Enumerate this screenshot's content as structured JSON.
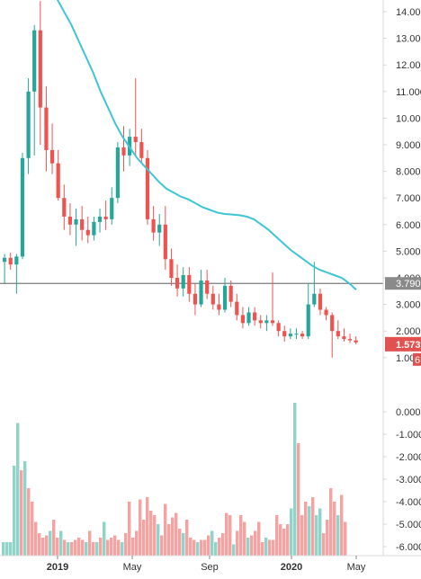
{
  "colors": {
    "up": "#26a69a",
    "down": "#ef5350",
    "up_volume": "#8fd3c9",
    "down_volume": "#f3a3a1",
    "moving_average": "#3ec6d4",
    "horizontal_line": "#7b7b7b",
    "price_label_bg": "#e0514f",
    "axis_text": "#333333",
    "axis_border": "#d9d9d9"
  },
  "chart_data": [
    {
      "type": "candlestick",
      "title": "",
      "y_ticks": [
        "14.000",
        "13.000",
        "12.000",
        "11.000",
        "10.000",
        "9.000",
        "8.000",
        "7.000",
        "6.000",
        "5.000",
        "4.000",
        "3.000",
        "2.000",
        "1.000"
      ],
      "ylim": [
        0.6,
        14.45
      ],
      "x_ticks": [
        "2019",
        "May",
        "Sep",
        "2020",
        "May"
      ],
      "horizontal_line": {
        "value": 3.79,
        "label": "3.790"
      },
      "last_price": {
        "value": 1.573,
        "label": "1.573"
      },
      "secondary_label": "6",
      "ohlc": [
        [
          4.6,
          4.9,
          3.8,
          4.75
        ],
        [
          4.75,
          4.95,
          4.3,
          4.5
        ],
        [
          4.5,
          4.9,
          3.4,
          4.8
        ],
        [
          4.8,
          8.7,
          4.7,
          8.5
        ],
        [
          8.5,
          11.5,
          7.9,
          11.0
        ],
        [
          11.0,
          13.5,
          8.6,
          13.3
        ],
        [
          13.3,
          14.4,
          9.0,
          10.4
        ],
        [
          10.4,
          11.2,
          8.0,
          8.8
        ],
        [
          8.8,
          9.8,
          7.9,
          8.3
        ],
        [
          8.3,
          8.8,
          6.9,
          7.0
        ],
        [
          7.0,
          7.5,
          5.8,
          6.3
        ],
        [
          6.3,
          6.8,
          5.6,
          6.0
        ],
        [
          6.0,
          6.6,
          5.2,
          6.2
        ],
        [
          6.2,
          6.7,
          5.4,
          5.8
        ],
        [
          5.8,
          6.3,
          5.3,
          5.6
        ],
        [
          5.6,
          6.3,
          5.4,
          6.1
        ],
        [
          6.1,
          6.6,
          5.7,
          6.3
        ],
        [
          6.3,
          6.9,
          5.8,
          6.2
        ],
        [
          6.2,
          7.4,
          6.0,
          7.0
        ],
        [
          7.0,
          9.1,
          6.8,
          8.9
        ],
        [
          8.9,
          9.7,
          8.0,
          8.6
        ],
        [
          8.6,
          9.6,
          8.2,
          9.3
        ],
        [
          9.3,
          11.5,
          8.6,
          9.1
        ],
        [
          9.1,
          9.6,
          8.3,
          8.5
        ],
        [
          8.5,
          8.8,
          6.0,
          6.2
        ],
        [
          6.2,
          6.7,
          5.4,
          5.7
        ],
        [
          5.7,
          6.4,
          5.2,
          6.0
        ],
        [
          6.0,
          6.7,
          4.3,
          4.7
        ],
        [
          4.7,
          5.1,
          3.7,
          4.0
        ],
        [
          4.0,
          4.5,
          3.3,
          3.6
        ],
        [
          3.6,
          4.4,
          3.3,
          4.1
        ],
        [
          4.1,
          4.4,
          3.1,
          3.4
        ],
        [
          3.4,
          3.8,
          2.6,
          3.0
        ],
        [
          3.0,
          4.3,
          2.9,
          3.9
        ],
        [
          3.9,
          4.3,
          3.2,
          3.4
        ],
        [
          3.4,
          3.7,
          2.8,
          3.0
        ],
        [
          3.0,
          3.4,
          2.6,
          2.8
        ],
        [
          2.8,
          4.0,
          2.7,
          3.7
        ],
        [
          3.7,
          3.9,
          2.9,
          3.1
        ],
        [
          3.1,
          3.4,
          2.4,
          2.6
        ],
        [
          2.6,
          2.9,
          2.1,
          2.3
        ],
        [
          2.3,
          2.9,
          2.2,
          2.7
        ],
        [
          2.7,
          2.9,
          2.2,
          2.4
        ],
        [
          2.4,
          2.6,
          2.1,
          2.3
        ],
        [
          2.3,
          2.6,
          2.0,
          2.4
        ],
        [
          2.4,
          4.2,
          2.2,
          2.3
        ],
        [
          2.3,
          2.4,
          1.8,
          2.0
        ],
        [
          2.0,
          2.2,
          1.6,
          1.8
        ],
        [
          1.8,
          2.1,
          1.7,
          1.9
        ],
        [
          1.9,
          2.1,
          1.7,
          1.9
        ],
        [
          1.9,
          2.0,
          1.7,
          1.8
        ],
        [
          1.8,
          3.8,
          1.7,
          3.0
        ],
        [
          3.0,
          4.6,
          2.9,
          3.4
        ],
        [
          3.4,
          3.6,
          2.6,
          2.8
        ],
        [
          2.8,
          2.9,
          2.4,
          2.6
        ],
        [
          2.6,
          2.7,
          1.0,
          2.0
        ],
        [
          2.0,
          2.4,
          1.7,
          1.8
        ],
        [
          1.8,
          2.1,
          1.6,
          1.7
        ],
        [
          1.7,
          1.9,
          1.55,
          1.65
        ],
        [
          1.65,
          1.8,
          1.5,
          1.573
        ]
      ],
      "ma": [
        14.9,
        14.5,
        14.0,
        13.5,
        12.9,
        12.3,
        11.7,
        11.0,
        10.4,
        9.8,
        9.3,
        8.9,
        8.5,
        8.2,
        7.9,
        7.6,
        7.35,
        7.2,
        7.05,
        6.95,
        6.8,
        6.65,
        6.55,
        6.45,
        6.4,
        6.38,
        6.35,
        6.3,
        6.2,
        6.0,
        5.8,
        5.55,
        5.3,
        5.05,
        4.85,
        4.65,
        4.45,
        4.3,
        4.2,
        4.1,
        4.0,
        3.8,
        3.55
      ],
      "ma_start_index": 10
    },
    {
      "type": "bar",
      "title": "",
      "y_ticks": [
        "0.000",
        "-1.000",
        "-2.000",
        "-3.000",
        "-4.000",
        "-5.000",
        "-6.000"
      ],
      "ylim": [
        -6.45,
        0.45
      ],
      "values": [
        -5.8,
        -5.8,
        -5.8,
        -2.4,
        -0.5,
        -2.6,
        -2.2,
        -3.4,
        -4.0,
        -4.9,
        -5.4,
        -5.6,
        -5.5,
        -5.3,
        -4.8,
        -5.6,
        -5.3,
        -5.7,
        -5.8,
        -5.8,
        -5.7,
        -5.6,
        -5.7,
        -5.8,
        -5.3,
        -5.8,
        -5.8,
        -5.6,
        -4.9,
        -5.7,
        -5.6,
        -5.5,
        -5.7,
        -5.8,
        -5.4,
        -4.0,
        -5.6,
        -5.3,
        -3.9,
        -4.8,
        -3.8,
        -4.4,
        -4.6,
        -5.0,
        -5.5,
        -4.1,
        -5.0,
        -4.7,
        -4.5,
        -5.2,
        -5.4,
        -4.8,
        -5.6,
        -5.7,
        -5.8,
        -5.7,
        -5.7,
        -5.5,
        -5.3,
        -5.8,
        -5.6,
        -5.4,
        -4.5,
        -4.6,
        -5.9,
        -5.3,
        -4.6,
        -4.9,
        -5.6,
        -5.5,
        -5.3,
        -4.9,
        -5.8,
        -5.6,
        -5.7,
        -5.7,
        -4.6,
        -5.0,
        -5.2,
        -5.0,
        -4.3,
        0.4,
        -1.4,
        -4.6,
        -4.0,
        -4.2,
        -3.8,
        -4.6,
        -4.3,
        -5.4,
        -4.8,
        -3.4,
        -4.0,
        -4.6,
        -3.7,
        -4.9,
        -6.4
      ],
      "directions": [
        1,
        1,
        1,
        1,
        1,
        0,
        1,
        0,
        0,
        0,
        0,
        0,
        0,
        1,
        0,
        0,
        1,
        0,
        1,
        0,
        0,
        0,
        0,
        1,
        0,
        0,
        1,
        0,
        1,
        0,
        0,
        0,
        0,
        1,
        0,
        0,
        0,
        0,
        0,
        0,
        0,
        0,
        0,
        1,
        0,
        0,
        0,
        0,
        0,
        0,
        1,
        0,
        0,
        0,
        1,
        0,
        0,
        0,
        1,
        1,
        0,
        0,
        0,
        0,
        1,
        0,
        0,
        0,
        1,
        0,
        0,
        0,
        0,
        1,
        0,
        0,
        0,
        0,
        0,
        0,
        1,
        1,
        0,
        0,
        0,
        1,
        0,
        1,
        1,
        0,
        0,
        0,
        0,
        1,
        0,
        0,
        0
      ]
    }
  ]
}
